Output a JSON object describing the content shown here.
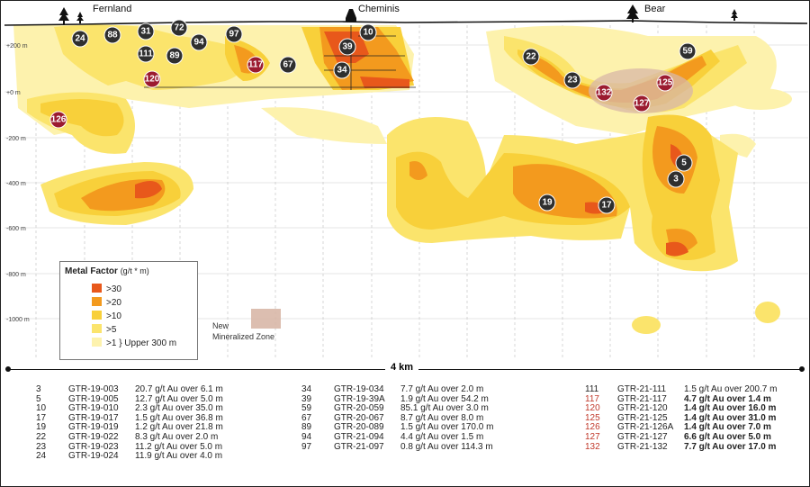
{
  "places": [
    "Fernland",
    "Cheminis",
    "Bear"
  ],
  "depth_labels": [
    "+200 m",
    "+0 m",
    "-200 m",
    "-400 m",
    "-600 m",
    "-800 m",
    "-1000 m"
  ],
  "holes": [
    "24",
    "88",
    "31",
    "72",
    "94",
    "97",
    "111",
    "89",
    "120",
    "126",
    "117",
    "67",
    "10",
    "39",
    "34",
    "22",
    "23",
    "132",
    "125",
    "127",
    "59",
    "5",
    "3",
    "19",
    "17"
  ],
  "hole_colors": {
    "dark": "#2f2f2f",
    "red": "#9b1b30"
  },
  "legend": {
    "title": "Metal Factor",
    "unit": "(g/t * m)",
    "items": [
      {
        "label": ">30",
        "color": "#e8581b"
      },
      {
        "label": ">20",
        "color": "#f39a1e"
      },
      {
        "label": ">10",
        "color": "#f8d03a"
      },
      {
        "label": ">5",
        "color": "#fbe46c"
      },
      {
        "label": ">1",
        "color": "#fdf2ad"
      }
    ],
    "upper_note": "} Upper 300 m"
  },
  "new_zone": {
    "line1": "New",
    "line2": "Mineralized Zone",
    "color": "#d8b7a7"
  },
  "scale": "4 km",
  "results": [
    [
      {
        "hole": "3",
        "id": "GTR-19-003",
        "result": "20.7 g/t Au over 6.1 m"
      },
      {
        "hole": "5",
        "id": "GTR-19-005",
        "result": "12.7 g/t Au over 5.0 m"
      },
      {
        "hole": "10",
        "id": "GTR-19-010",
        "result": "2.3 g/t Au over 35.0 m"
      },
      {
        "hole": "17",
        "id": "GTR-19-017",
        "result": "1.5 g/t Au over 36.8 m"
      },
      {
        "hole": "19",
        "id": "GTR-19-019",
        "result": "1.2 g/t Au over 21.8 m"
      },
      {
        "hole": "22",
        "id": "GTR-19-022",
        "result": "8.3 g/t Au over 2.0 m"
      },
      {
        "hole": "23",
        "id": "GTR-19-023",
        "result": "11.2 g/t Au over 5.0 m"
      },
      {
        "hole": "24",
        "id": "GTR-19-024",
        "result": "11.9 g/t Au over 4.0 m"
      }
    ],
    [
      {
        "hole": "34",
        "id": "GTR-19-034",
        "result": "7.7 g/t Au over 2.0 m"
      },
      {
        "hole": "39",
        "id": "GTR-19-39A",
        "result": "1.9 g/t Au over 54.2 m"
      },
      {
        "hole": "59",
        "id": "GTR-20-059",
        "result": "85.1 g/t  Au over 3.0 m"
      },
      {
        "hole": "67",
        "id": "GTR-20-067",
        "result": "8.7 g/t Au over 8.0 m"
      },
      {
        "hole": "89",
        "id": "GTR-20-089",
        "result": "1.5 g/t Au over 170.0 m"
      },
      {
        "hole": "94",
        "id": "GTR-21-094",
        "result": "4.4 g/t Au over 1.5 m"
      },
      {
        "hole": "97",
        "id": "GTR-21-097",
        "result": "0.8 g/t Au over 114.3 m"
      }
    ],
    [
      {
        "hole": "111",
        "id": "GTR-21-111",
        "result": "1.5 g/t Au over 200.7 m",
        "highlight": false
      },
      {
        "hole": "117",
        "id": "GTR-21-117",
        "result": "4.7 g/t Au over 1.4 m",
        "highlight": true
      },
      {
        "hole": "120",
        "id": "GTR-21-120",
        "result": "1.4 g/t Au over 16.0 m",
        "highlight": true
      },
      {
        "hole": "125",
        "id": "GTR-21-125",
        "result": "1.4 g/t Au over 31.0 m",
        "highlight": true
      },
      {
        "hole": "126",
        "id": "GTR-21-126A",
        "result": "1.4 g/t Au over 7.0 m",
        "highlight": true
      },
      {
        "hole": "127",
        "id": "GTR-21-127",
        "result": "6.6 g/t Au over 5.0 m",
        "highlight": true
      },
      {
        "hole": "132",
        "id": "GTR-21-132",
        "result": "7.7 g/t Au over 17.0 m",
        "highlight": true
      }
    ]
  ]
}
